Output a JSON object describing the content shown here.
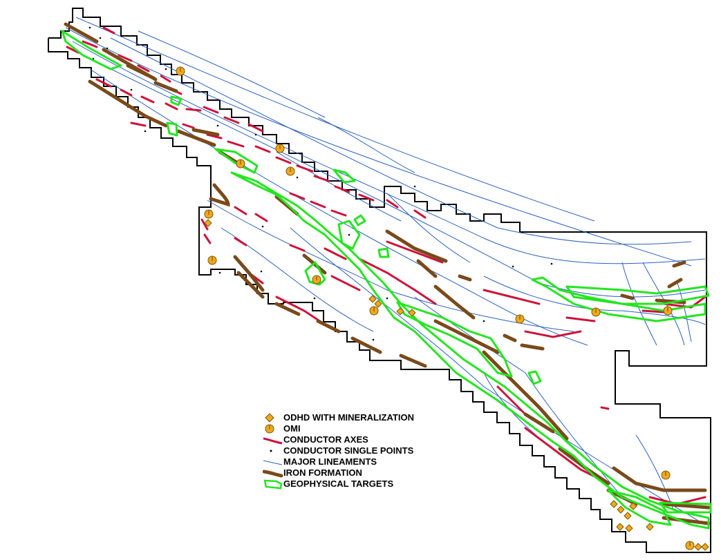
{
  "map": {
    "colors": {
      "boundary": "#000000",
      "conductor_axes": "#d0103a",
      "conductor_points": "#000000",
      "lineaments": "#2a5fbf",
      "iron_formation": "#7a4a1a",
      "geophysical_targets": "#22e61e",
      "odhd": "#f0a820",
      "omi": "#f0a820"
    },
    "layers": [
      "boundary",
      "major-lineaments",
      "conductor-axes",
      "conductor-single-points",
      "iron-formation",
      "geophysical-targets",
      "odhd-with-mineralization",
      "omi"
    ]
  },
  "legend": {
    "items": [
      {
        "key": "odhd",
        "label": "ODHD WITH MINERALIZATION",
        "symbol": "diamond-icon"
      },
      {
        "key": "omi",
        "label": "OMI",
        "symbol": "pin-circle-icon"
      },
      {
        "key": "conductor_axes",
        "label": "CONDUCTOR AXES",
        "symbol": "red-line-icon"
      },
      {
        "key": "conductor_points",
        "label": "CONDUCTOR SINGLE POINTS",
        "symbol": "dot-icon"
      },
      {
        "key": "lineaments",
        "label": "MAJOR LINEAMENTS",
        "symbol": "blue-line-icon"
      },
      {
        "key": "iron_formation",
        "label": "IRON FORMATION",
        "symbol": "brown-line-icon"
      },
      {
        "key": "geophysical_targets",
        "label": "GEOPHYSICAL TARGETS",
        "symbol": "green-polygon-icon"
      }
    ]
  }
}
